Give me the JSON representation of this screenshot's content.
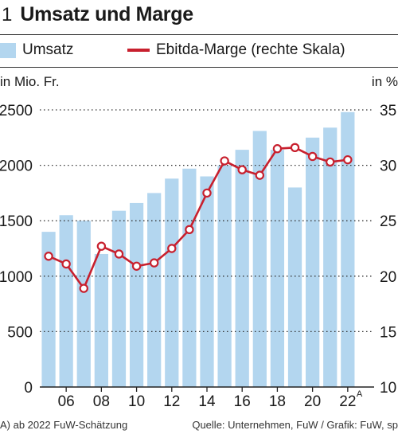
{
  "header": {
    "figure_number": "1",
    "title": "Umsatz und Marge"
  },
  "legend": {
    "bar_label": "Umsatz",
    "line_label": "Ebitda-Marge (rechte Skala)"
  },
  "units": {
    "left": "in Mio. Fr.",
    "right": "in %"
  },
  "footer": {
    "note": "A) ab 2022 FuW-Schätzung",
    "source": "Quelle: Unternehmen, FuW / Grafik: FuW, sp"
  },
  "colors": {
    "bar": "#b3d6ef",
    "line": "#c8202e",
    "marker_fill": "#ffffff"
  },
  "chart_data": {
    "type": "bar",
    "categories": [
      "2005",
      "2006",
      "2007",
      "2008",
      "2009",
      "2010",
      "2011",
      "2012",
      "2013",
      "2014",
      "2015",
      "2016",
      "2017",
      "2018",
      "2019",
      "2020",
      "2021",
      "2022",
      "2023"
    ],
    "x_tick_labels": [
      "06",
      "08",
      "10",
      "12",
      "14",
      "16",
      "18",
      "20",
      "22"
    ],
    "x_tick_categories": [
      "2006",
      "2008",
      "2010",
      "2012",
      "2014",
      "2016",
      "2018",
      "2020",
      "2022"
    ],
    "x_tick_superscript": {
      "2022": "A"
    },
    "series": [
      {
        "name": "Umsatz",
        "type": "bar",
        "axis": "left",
        "values": [
          1400,
          1550,
          1500,
          1200,
          1590,
          1660,
          1750,
          1880,
          1970,
          1900,
          2000,
          2140,
          2310,
          2140,
          1800,
          2250,
          2340,
          2480,
          null
        ]
      },
      {
        "name": "Ebitda-Marge (rechte Skala)",
        "type": "line",
        "axis": "right",
        "values": [
          21.8,
          21.1,
          18.9,
          22.7,
          22.0,
          20.9,
          21.2,
          22.5,
          24.2,
          27.5,
          30.4,
          29.6,
          29.1,
          31.5,
          31.6,
          30.8,
          30.3,
          30.5,
          null
        ]
      }
    ],
    "left_axis": {
      "ylim": [
        0,
        2500
      ],
      "ticks": [
        0,
        500,
        1000,
        1500,
        2000,
        2500
      ]
    },
    "right_axis": {
      "ylim": [
        10,
        35
      ],
      "ticks": [
        10,
        15,
        20,
        25,
        30,
        35
      ]
    },
    "grid": "dotted horizontal"
  }
}
